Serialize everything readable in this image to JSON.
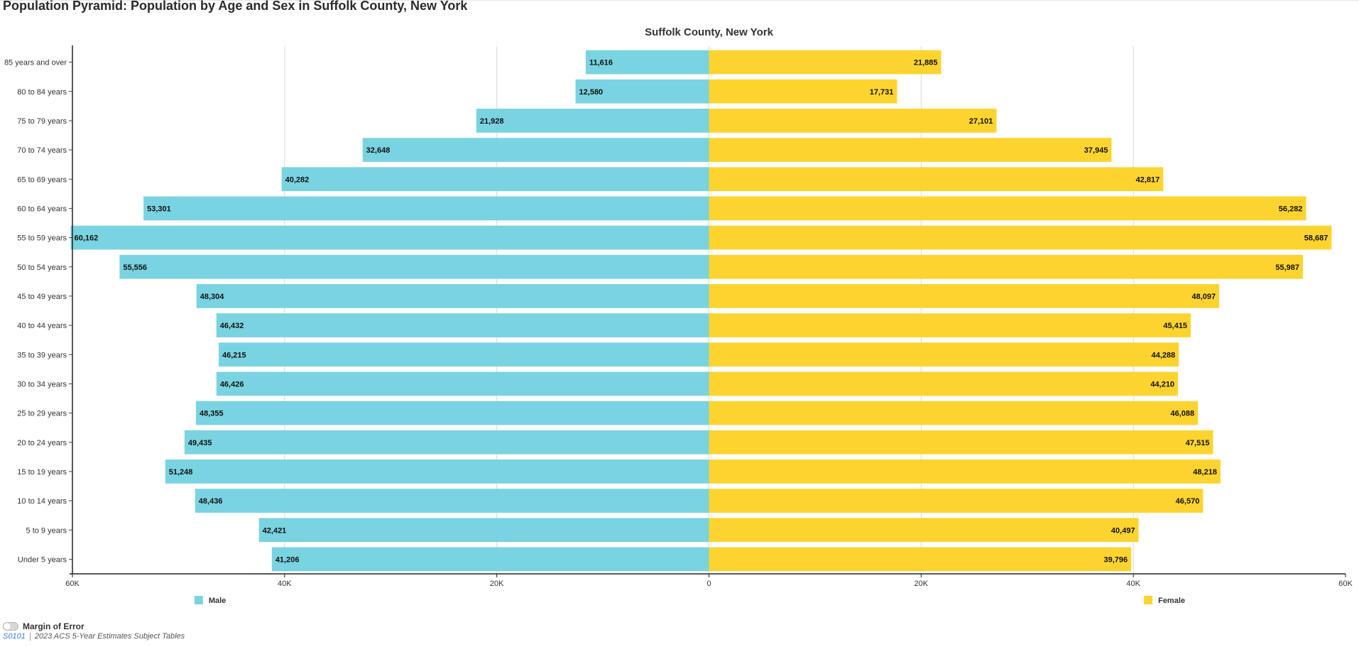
{
  "page": {
    "title": "Population Pyramid: Population by Age and Sex in Suffolk County, New York"
  },
  "chart_data": {
    "type": "bar",
    "orientation": "horizontal-pyramid",
    "title": "Suffolk County, New York",
    "categories": [
      "85 years and over",
      "80 to 84 years",
      "75 to 79 years",
      "70 to 74 years",
      "65 to 69 years",
      "60 to 64 years",
      "55 to 59 years",
      "50 to 54 years",
      "45 to 49 years",
      "40 to 44 years",
      "35 to 39 years",
      "30 to 34 years",
      "25 to 29 years",
      "20 to 24 years",
      "15 to 19 years",
      "10 to 14 years",
      "5 to 9 years",
      "Under 5 years"
    ],
    "series": [
      {
        "name": "Male",
        "color": "#7ad3e0",
        "values": [
          11616,
          12580,
          21928,
          32648,
          40282,
          53301,
          60162,
          55556,
          48304,
          46432,
          46215,
          46426,
          48355,
          49435,
          51248,
          48436,
          42421,
          41206
        ],
        "labels": [
          "11,616",
          "12,580",
          "21,928",
          "32,648",
          "40,282",
          "53,301",
          "60,162",
          "55,556",
          "48,304",
          "46,432",
          "46,215",
          "46,426",
          "48,355",
          "49,435",
          "51,248",
          "48,436",
          "42,421",
          "41,206"
        ]
      },
      {
        "name": "Female",
        "color": "#fdd42f",
        "values": [
          21885,
          17731,
          27101,
          37945,
          42817,
          56282,
          58687,
          55987,
          48097,
          45415,
          44288,
          44210,
          46088,
          47515,
          48218,
          46570,
          40497,
          39796
        ],
        "labels": [
          "21,885",
          "17,731",
          "27,101",
          "37,945",
          "42,817",
          "56,282",
          "58,687",
          "55,987",
          "48,097",
          "45,415",
          "44,288",
          "44,210",
          "46,088",
          "47,515",
          "48,218",
          "46,570",
          "40,497",
          "39,796"
        ]
      }
    ],
    "xlim": [
      -60000,
      60000
    ],
    "ticks": [
      -60000,
      -40000,
      -20000,
      0,
      20000,
      40000,
      60000
    ],
    "tick_labels": [
      "60K",
      "40K",
      "20K",
      "0",
      "20K",
      "40K",
      "60K"
    ],
    "grid": true,
    "legend": "bottom"
  },
  "footer": {
    "moe_label": "Margin of Error",
    "source_code": "S0101",
    "source_desc": "2023 ACS 5-Year Estimates Subject Tables"
  }
}
